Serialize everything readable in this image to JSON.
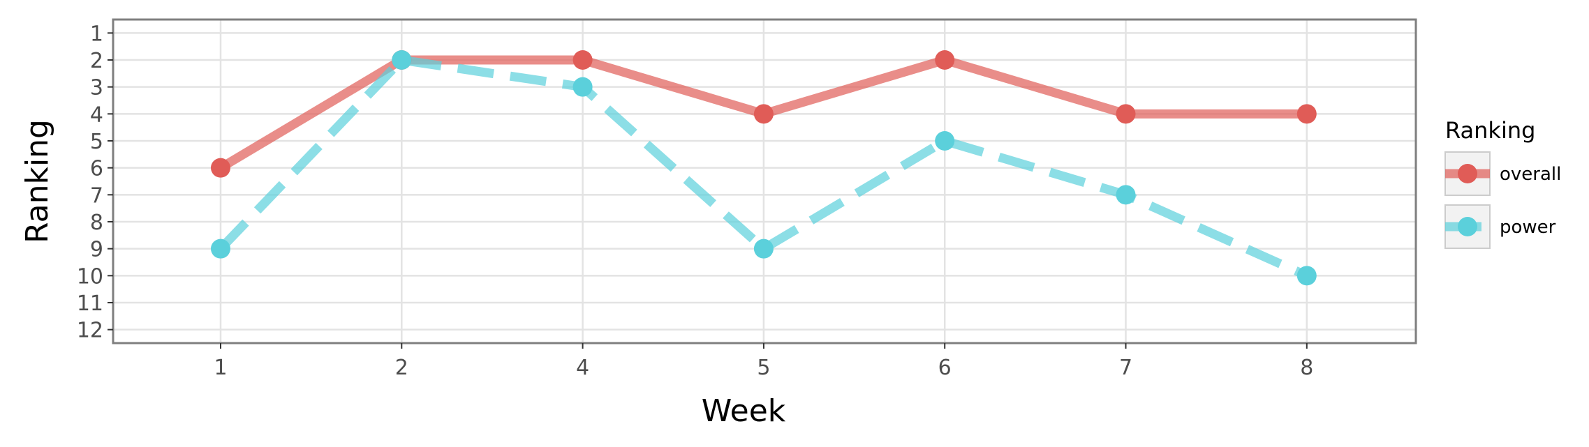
{
  "chart_data": {
    "type": "line",
    "title": "",
    "xlabel": "Week",
    "ylabel": "Ranking",
    "categories": [
      "1",
      "2",
      "4",
      "5",
      "6",
      "7",
      "8"
    ],
    "y_ticks": [
      1,
      2,
      3,
      4,
      5,
      6,
      7,
      8,
      9,
      10,
      11,
      12
    ],
    "ylim": [
      12.5,
      0.5
    ],
    "y_reversed": true,
    "grid": true,
    "legend": {
      "title": "Ranking",
      "placement": "right"
    },
    "series": [
      {
        "name": "overall",
        "values": [
          6,
          2,
          2,
          4,
          2,
          4,
          4
        ],
        "color": "#e05c57",
        "line_style": "solid"
      },
      {
        "name": "power",
        "values": [
          9,
          2,
          3,
          9,
          5,
          7,
          10
        ],
        "color": "#5bd0db",
        "line_style": "dashed"
      }
    ]
  }
}
